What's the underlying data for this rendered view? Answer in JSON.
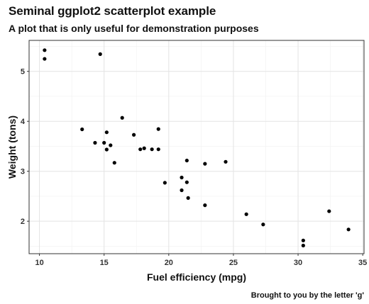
{
  "chart_data": {
    "type": "scatter",
    "title": "Seminal ggplot2 scatterplot example",
    "subtitle": "A plot that is only useful for demonstration purposes",
    "caption": "Brought to you by the letter 'g'",
    "xlabel": "Fuel efficiency (mpg)",
    "ylabel": "Weight (tons)",
    "xlim": [
      9.2,
      35.1
    ],
    "ylim": [
      1.35,
      5.62
    ],
    "x_ticks": [
      10,
      15,
      20,
      25,
      30,
      35
    ],
    "y_ticks": [
      2,
      3,
      4,
      5
    ],
    "x_tick_labels": [
      "10",
      "15",
      "20",
      "25",
      "30",
      "35"
    ],
    "y_tick_labels": [
      "2",
      "3",
      "4",
      "5"
    ],
    "grid": true,
    "series": [
      {
        "points": [
          [
            21.0,
            2.62
          ],
          [
            21.0,
            2.875
          ],
          [
            22.8,
            2.32
          ],
          [
            21.4,
            3.215
          ],
          [
            18.7,
            3.44
          ],
          [
            18.1,
            3.46
          ],
          [
            14.3,
            3.57
          ],
          [
            24.4,
            3.19
          ],
          [
            22.8,
            3.15
          ],
          [
            19.2,
            3.44
          ],
          [
            17.8,
            3.44
          ],
          [
            16.4,
            4.07
          ],
          [
            17.3,
            3.73
          ],
          [
            15.2,
            3.78
          ],
          [
            10.4,
            5.25
          ],
          [
            10.4,
            5.424
          ],
          [
            14.7,
            5.345
          ],
          [
            32.4,
            2.2
          ],
          [
            30.4,
            1.615
          ],
          [
            33.9,
            1.835
          ],
          [
            21.5,
            2.465
          ],
          [
            15.5,
            3.52
          ],
          [
            15.2,
            3.435
          ],
          [
            13.3,
            3.84
          ],
          [
            19.2,
            3.845
          ],
          [
            27.3,
            1.935
          ],
          [
            26.0,
            2.14
          ],
          [
            30.4,
            1.513
          ],
          [
            15.8,
            3.17
          ],
          [
            19.7,
            2.77
          ],
          [
            15.0,
            3.57
          ],
          [
            21.4,
            2.78
          ]
        ]
      }
    ]
  },
  "colors": {
    "point": "#000000",
    "grid_major": "#e3e3e3",
    "grid_minor": "#f1f1f1",
    "panel_border": "#333333",
    "tick_label": "#333333"
  }
}
